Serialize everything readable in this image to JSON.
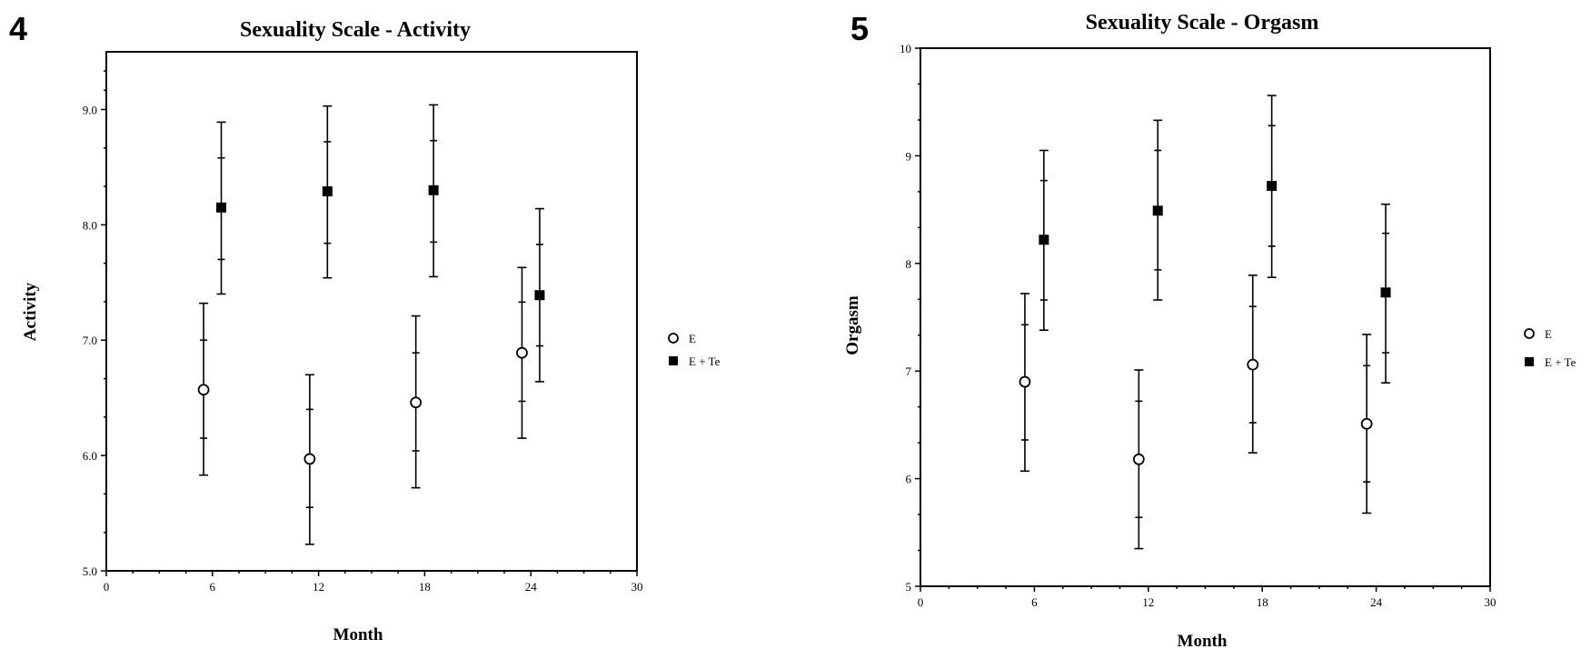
{
  "chart_data": [
    {
      "type": "scatter",
      "panel_label": "4",
      "title": "Sexuality Scale  -  Activity",
      "xlabel": "Month",
      "ylabel": "Activity",
      "xlim": [
        0,
        30
      ],
      "ylim": [
        5.0,
        9.5
      ],
      "x_ticks": [
        0,
        6,
        12,
        18,
        24,
        30
      ],
      "x_tick_labels": [
        "0",
        "6",
        "12",
        "18",
        "24",
        "30"
      ],
      "y_ticks": [
        5.0,
        6.0,
        7.0,
        8.0,
        9.0
      ],
      "y_tick_labels": [
        "5.0",
        "6.0",
        "7.0",
        "8.0",
        "9.0"
      ],
      "grid": false,
      "legend_position": "right",
      "series": [
        {
          "name": "E",
          "marker": "open-circle",
          "points": [
            {
              "x": 5.5,
              "y": 6.57,
              "se_low": 6.15,
              "se_high": 7.0,
              "ci_low": 5.83,
              "ci_high": 7.32
            },
            {
              "x": 11.5,
              "y": 5.97,
              "se_low": 5.55,
              "se_high": 6.4,
              "ci_low": 5.23,
              "ci_high": 6.7
            },
            {
              "x": 17.5,
              "y": 6.46,
              "se_low": 6.04,
              "se_high": 6.89,
              "ci_low": 5.72,
              "ci_high": 7.21
            },
            {
              "x": 23.5,
              "y": 6.89,
              "se_low": 6.47,
              "se_high": 7.33,
              "ci_low": 6.15,
              "ci_high": 7.63
            }
          ]
        },
        {
          "name": "E + Te",
          "marker": "filled-square",
          "points": [
            {
              "x": 6.5,
              "y": 8.15,
              "se_low": 7.7,
              "se_high": 8.58,
              "ci_low": 7.4,
              "ci_high": 8.89
            },
            {
              "x": 12.5,
              "y": 8.29,
              "se_low": 7.84,
              "se_high": 8.72,
              "ci_low": 7.54,
              "ci_high": 9.03
            },
            {
              "x": 18.5,
              "y": 8.3,
              "se_low": 7.85,
              "se_high": 8.73,
              "ci_low": 7.55,
              "ci_high": 9.04
            },
            {
              "x": 24.5,
              "y": 7.39,
              "se_low": 6.95,
              "se_high": 7.83,
              "ci_low": 6.64,
              "ci_high": 8.14
            }
          ]
        }
      ]
    },
    {
      "type": "scatter",
      "panel_label": "5",
      "title": "Sexuality Scale  -  Orgasm",
      "xlabel": "Month",
      "ylabel": "Orgasm",
      "xlim": [
        0,
        30
      ],
      "ylim": [
        5,
        10
      ],
      "x_ticks": [
        0,
        6,
        12,
        18,
        24,
        30
      ],
      "x_tick_labels": [
        "0",
        "6",
        "12",
        "18",
        "24",
        "30"
      ],
      "y_ticks": [
        5,
        6,
        7,
        8,
        9,
        10
      ],
      "y_tick_labels": [
        "5",
        "6",
        "7",
        "8",
        "9",
        "10"
      ],
      "grid": false,
      "legend_position": "right",
      "series": [
        {
          "name": "E",
          "marker": "open-circle",
          "points": [
            {
              "x": 5.5,
              "y": 6.9,
              "se_low": 6.36,
              "se_high": 7.43,
              "ci_low": 6.07,
              "ci_high": 7.72
            },
            {
              "x": 11.5,
              "y": 6.18,
              "se_low": 5.64,
              "se_high": 6.72,
              "ci_low": 5.35,
              "ci_high": 7.01
            },
            {
              "x": 17.5,
              "y": 7.06,
              "se_low": 6.52,
              "se_high": 7.6,
              "ci_low": 6.24,
              "ci_high": 7.89
            },
            {
              "x": 23.5,
              "y": 6.51,
              "se_low": 5.97,
              "se_high": 7.05,
              "ci_low": 5.68,
              "ci_high": 7.34
            }
          ]
        },
        {
          "name": "E + Te",
          "marker": "filled-square",
          "points": [
            {
              "x": 6.5,
              "y": 8.22,
              "se_low": 7.66,
              "se_high": 8.77,
              "ci_low": 7.38,
              "ci_high": 9.05
            },
            {
              "x": 12.5,
              "y": 8.49,
              "se_low": 7.94,
              "se_high": 9.05,
              "ci_low": 7.66,
              "ci_high": 9.33
            },
            {
              "x": 18.5,
              "y": 8.72,
              "se_low": 8.16,
              "se_high": 9.28,
              "ci_low": 7.87,
              "ci_high": 9.56
            },
            {
              "x": 24.5,
              "y": 7.73,
              "se_low": 7.17,
              "se_high": 8.28,
              "ci_low": 6.89,
              "ci_high": 8.55
            }
          ]
        }
      ]
    }
  ]
}
